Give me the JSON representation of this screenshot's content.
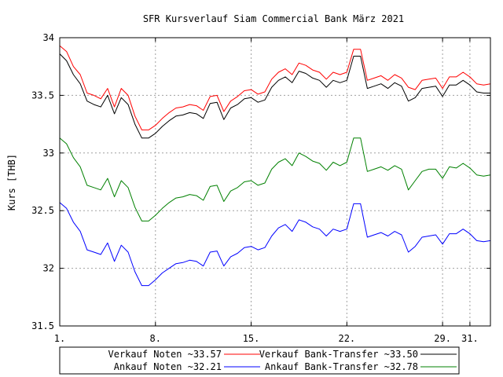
{
  "chart_data": {
    "type": "line",
    "title": "SFR Kursverlauf Siam Commercial Bank März 2021",
    "xlabel": "",
    "ylabel": "Kurs [THB]",
    "xlim": [
      1,
      32.5
    ],
    "ylim": [
      31.5,
      34.0
    ],
    "x_ticks": [
      {
        "v": 1,
        "label": "1."
      },
      {
        "v": 8,
        "label": "8."
      },
      {
        "v": 15,
        "label": "15."
      },
      {
        "v": 22,
        "label": "22."
      },
      {
        "v": 29,
        "label": "29."
      },
      {
        "v": 31,
        "label": "31."
      }
    ],
    "y_ticks": [
      {
        "v": 31.5,
        "label": "31.5"
      },
      {
        "v": 32,
        "label": "32"
      },
      {
        "v": 32.5,
        "label": "32.5"
      },
      {
        "v": 33,
        "label": "33"
      },
      {
        "v": 33.5,
        "label": "33.5"
      },
      {
        "v": 34,
        "label": "34"
      }
    ],
    "grid": true,
    "legend_position": "bottom",
    "x": [
      1,
      1.5,
      2,
      2.5,
      3,
      3.5,
      4,
      4.5,
      5,
      5.5,
      6,
      6.5,
      7,
      7.5,
      8,
      8.5,
      9,
      9.5,
      10,
      10.5,
      11,
      11.5,
      12,
      12.5,
      13,
      13.5,
      14,
      14.5,
      15,
      15.5,
      16,
      16.5,
      17,
      17.5,
      18,
      18.5,
      19,
      19.5,
      20,
      20.5,
      21,
      21.5,
      22,
      22.5,
      23,
      23.5,
      24,
      24.5,
      25,
      25.5,
      26,
      26.5,
      27,
      27.5,
      28,
      28.5,
      29,
      29.5,
      30,
      30.5,
      31,
      31.5,
      32,
      32.5
    ],
    "series": [
      {
        "name": "Verkauf Noten ~33.57",
        "color": "#ff0000",
        "values": [
          33.93,
          33.88,
          33.75,
          33.68,
          33.52,
          33.5,
          33.47,
          33.56,
          33.4,
          33.56,
          33.5,
          33.32,
          33.2,
          33.2,
          33.24,
          33.3,
          33.35,
          33.39,
          33.4,
          33.42,
          33.41,
          33.37,
          33.49,
          33.5,
          33.36,
          33.45,
          33.49,
          33.54,
          33.55,
          33.51,
          33.53,
          33.64,
          33.7,
          33.73,
          33.68,
          33.78,
          33.76,
          33.72,
          33.7,
          33.64,
          33.7,
          33.68,
          33.7,
          33.9,
          33.9,
          33.63,
          33.65,
          33.67,
          33.63,
          33.68,
          33.65,
          33.57,
          33.55,
          33.63,
          33.64,
          33.65,
          33.56,
          33.66,
          33.66,
          33.7,
          33.66,
          33.6,
          33.59,
          33.6
        ]
      },
      {
        "name": "Verkauf Bank-Transfer ~33.50",
        "color": "#000000",
        "values": [
          33.86,
          33.8,
          33.68,
          33.6,
          33.45,
          33.42,
          33.4,
          33.5,
          33.34,
          33.48,
          33.42,
          33.25,
          33.13,
          33.13,
          33.17,
          33.23,
          33.28,
          33.32,
          33.33,
          33.35,
          33.34,
          33.3,
          33.43,
          33.44,
          33.29,
          33.39,
          33.42,
          33.47,
          33.48,
          33.44,
          33.46,
          33.57,
          33.63,
          33.66,
          33.61,
          33.71,
          33.69,
          33.65,
          33.63,
          33.57,
          33.63,
          33.61,
          33.63,
          33.84,
          33.84,
          33.56,
          33.58,
          33.6,
          33.56,
          33.61,
          33.58,
          33.45,
          33.48,
          33.56,
          33.57,
          33.58,
          33.49,
          33.59,
          33.59,
          33.63,
          33.59,
          33.53,
          33.52,
          33.52
        ]
      },
      {
        "name": "Ankauf Noten ~32.21",
        "color": "#0000ff",
        "values": [
          32.57,
          32.52,
          32.4,
          32.32,
          32.16,
          32.14,
          32.12,
          32.22,
          32.06,
          32.2,
          32.14,
          31.97,
          31.85,
          31.85,
          31.9,
          31.96,
          32.0,
          32.04,
          32.05,
          32.07,
          32.06,
          32.02,
          32.14,
          32.15,
          32.02,
          32.1,
          32.13,
          32.18,
          32.19,
          32.16,
          32.18,
          32.28,
          32.35,
          32.38,
          32.32,
          32.42,
          32.4,
          32.36,
          32.34,
          32.28,
          32.34,
          32.32,
          32.34,
          32.56,
          32.56,
          32.27,
          32.29,
          32.31,
          32.28,
          32.32,
          32.29,
          32.14,
          32.19,
          32.27,
          32.28,
          32.29,
          32.21,
          32.3,
          32.3,
          32.34,
          32.3,
          32.24,
          32.23,
          32.24
        ]
      },
      {
        "name": "Ankauf Bank-Transfer ~32.78",
        "color": "#008000",
        "values": [
          33.13,
          33.08,
          32.96,
          32.88,
          32.72,
          32.7,
          32.68,
          32.78,
          32.62,
          32.76,
          32.7,
          32.53,
          32.41,
          32.41,
          32.46,
          32.52,
          32.57,
          32.61,
          32.62,
          32.64,
          32.63,
          32.59,
          32.71,
          32.72,
          32.58,
          32.67,
          32.7,
          32.75,
          32.76,
          32.72,
          32.74,
          32.86,
          32.92,
          32.95,
          32.89,
          33.0,
          32.97,
          32.93,
          32.91,
          32.85,
          32.92,
          32.89,
          32.92,
          33.13,
          33.13,
          32.84,
          32.86,
          32.88,
          32.85,
          32.89,
          32.86,
          32.68,
          32.76,
          32.84,
          32.86,
          32.86,
          32.78,
          32.88,
          32.87,
          32.91,
          32.87,
          32.81,
          32.8,
          32.81
        ]
      }
    ]
  }
}
